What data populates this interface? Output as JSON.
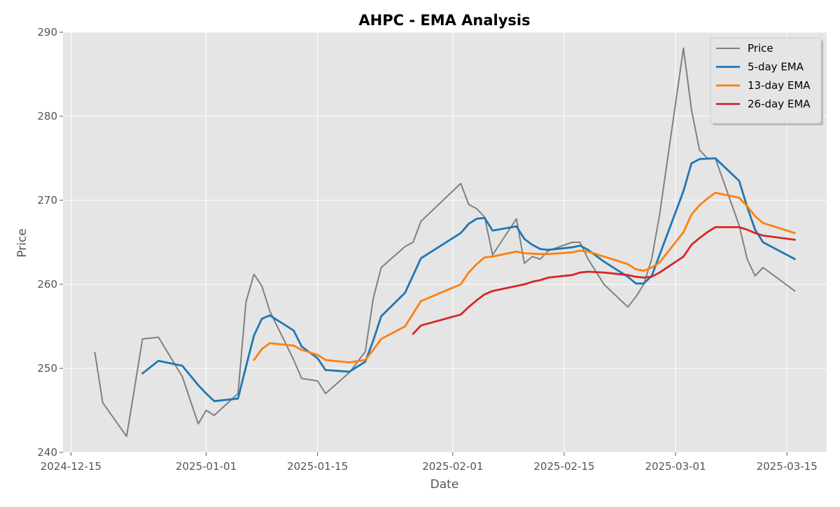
{
  "chart_data": {
    "type": "line",
    "title": "AHPC - EMA Analysis",
    "xlabel": "Date",
    "ylabel": "Price",
    "xlim": [
      "2024-12-14",
      "2025-03-20"
    ],
    "ylim": [
      240,
      290
    ],
    "x_ticks": [
      "2024-12-15",
      "2025-01-01",
      "2025-01-15",
      "2025-02-01",
      "2025-02-15",
      "2025-03-01",
      "2025-03-15"
    ],
    "y_ticks": [
      240,
      250,
      260,
      270,
      280,
      290
    ],
    "grid": true,
    "legend_position": "top-right",
    "series": [
      {
        "name": "Price",
        "color": "#808080",
        "points": [
          [
            "2024-12-18",
            251.9
          ],
          [
            "2024-12-19",
            245.9
          ],
          [
            "2024-12-22",
            241.9
          ],
          [
            "2024-12-24",
            253.5
          ],
          [
            "2024-12-26",
            253.7
          ],
          [
            "2024-12-29",
            249.0
          ],
          [
            "2024-12-31",
            243.4
          ],
          [
            "2025-01-01",
            245.0
          ],
          [
            "2025-01-02",
            244.4
          ],
          [
            "2025-01-05",
            247.0
          ],
          [
            "2025-01-06",
            257.9
          ],
          [
            "2025-01-07",
            261.2
          ],
          [
            "2025-01-08",
            259.8
          ],
          [
            "2025-01-09",
            256.8
          ],
          [
            "2025-01-12",
            251.0
          ],
          [
            "2025-01-13",
            248.8
          ],
          [
            "2025-01-15",
            248.5
          ],
          [
            "2025-01-16",
            247.0
          ],
          [
            "2025-01-19",
            249.5
          ],
          [
            "2025-01-21",
            252.0
          ],
          [
            "2025-01-22",
            258.3
          ],
          [
            "2025-01-23",
            262.0
          ],
          [
            "2025-01-26",
            264.5
          ],
          [
            "2025-01-27",
            265.0
          ],
          [
            "2025-01-28",
            267.5
          ],
          [
            "2025-02-02",
            272.0
          ],
          [
            "2025-02-03",
            269.5
          ],
          [
            "2025-02-04",
            269.0
          ],
          [
            "2025-02-05",
            268.0
          ],
          [
            "2025-02-06",
            263.5
          ],
          [
            "2025-02-09",
            267.8
          ],
          [
            "2025-02-10",
            262.5
          ],
          [
            "2025-02-11",
            263.3
          ],
          [
            "2025-02-12",
            263.0
          ],
          [
            "2025-02-13",
            264.0
          ],
          [
            "2025-02-16",
            265.0
          ],
          [
            "2025-02-17",
            265.0
          ],
          [
            "2025-02-18",
            263.0
          ],
          [
            "2025-02-20",
            260.0
          ],
          [
            "2025-02-23",
            257.3
          ],
          [
            "2025-02-24",
            258.5
          ],
          [
            "2025-02-25",
            260.0
          ],
          [
            "2025-02-26",
            263.0
          ],
          [
            "2025-02-27",
            268.3
          ],
          [
            "2025-03-02",
            288.1
          ],
          [
            "2025-03-03",
            280.8
          ],
          [
            "2025-03-04",
            276.0
          ],
          [
            "2025-03-05",
            275.0
          ],
          [
            "2025-03-06",
            275.0
          ],
          [
            "2025-03-09",
            267.0
          ],
          [
            "2025-03-10",
            263.0
          ],
          [
            "2025-03-11",
            261.0
          ],
          [
            "2025-03-12",
            262.0
          ],
          [
            "2025-03-16",
            259.2
          ]
        ]
      },
      {
        "name": "5-day EMA",
        "color": "#1f77b4",
        "points": [
          [
            "2024-12-24",
            249.4
          ],
          [
            "2024-12-26",
            250.9
          ],
          [
            "2024-12-29",
            250.3
          ],
          [
            "2024-12-31",
            248.0
          ],
          [
            "2025-01-01",
            247.0
          ],
          [
            "2025-01-02",
            246.1
          ],
          [
            "2025-01-05",
            246.4
          ],
          [
            "2025-01-06",
            250.2
          ],
          [
            "2025-01-07",
            253.9
          ],
          [
            "2025-01-08",
            255.9
          ],
          [
            "2025-01-09",
            256.3
          ],
          [
            "2025-01-12",
            254.5
          ],
          [
            "2025-01-13",
            252.6
          ],
          [
            "2025-01-15",
            251.2
          ],
          [
            "2025-01-16",
            249.8
          ],
          [
            "2025-01-19",
            249.6
          ],
          [
            "2025-01-21",
            250.8
          ],
          [
            "2025-01-22",
            253.3
          ],
          [
            "2025-01-23",
            256.2
          ],
          [
            "2025-01-26",
            259.0
          ],
          [
            "2025-01-28",
            263.1
          ],
          [
            "2025-02-02",
            266.1
          ],
          [
            "2025-02-03",
            267.2
          ],
          [
            "2025-02-04",
            267.8
          ],
          [
            "2025-02-05",
            267.9
          ],
          [
            "2025-02-06",
            266.4
          ],
          [
            "2025-02-09",
            266.9
          ],
          [
            "2025-02-10",
            265.4
          ],
          [
            "2025-02-11",
            264.7
          ],
          [
            "2025-02-12",
            264.2
          ],
          [
            "2025-02-13",
            264.1
          ],
          [
            "2025-02-16",
            264.4
          ],
          [
            "2025-02-17",
            264.6
          ],
          [
            "2025-02-18",
            264.1
          ],
          [
            "2025-02-20",
            262.7
          ],
          [
            "2025-02-23",
            260.9
          ],
          [
            "2025-02-24",
            260.1
          ],
          [
            "2025-02-25",
            260.1
          ],
          [
            "2025-02-26",
            261.0
          ],
          [
            "2025-02-27",
            263.5
          ],
          [
            "2025-03-02",
            271.1
          ],
          [
            "2025-03-03",
            274.4
          ],
          [
            "2025-03-04",
            274.9
          ],
          [
            "2025-03-06",
            275.0
          ],
          [
            "2025-03-09",
            272.3
          ],
          [
            "2025-03-10",
            269.2
          ],
          [
            "2025-03-11",
            266.5
          ],
          [
            "2025-03-12",
            265.0
          ],
          [
            "2025-03-16",
            263.0
          ]
        ]
      },
      {
        "name": "13-day EMA",
        "color": "#ff7f0e",
        "points": [
          [
            "2025-01-07",
            251.0
          ],
          [
            "2025-01-08",
            252.3
          ],
          [
            "2025-01-09",
            253.0
          ],
          [
            "2025-01-12",
            252.7
          ],
          [
            "2025-01-13",
            252.2
          ],
          [
            "2025-01-15",
            251.6
          ],
          [
            "2025-01-16",
            251.0
          ],
          [
            "2025-01-19",
            250.7
          ],
          [
            "2025-01-21",
            251.0
          ],
          [
            "2025-01-22",
            252.2
          ],
          [
            "2025-01-23",
            253.5
          ],
          [
            "2025-01-26",
            255.0
          ],
          [
            "2025-01-28",
            258.0
          ],
          [
            "2025-02-02",
            260.0
          ],
          [
            "2025-02-03",
            261.4
          ],
          [
            "2025-02-04",
            262.4
          ],
          [
            "2025-02-05",
            263.2
          ],
          [
            "2025-02-06",
            263.3
          ],
          [
            "2025-02-09",
            263.9
          ],
          [
            "2025-02-10",
            263.7
          ],
          [
            "2025-02-12",
            263.6
          ],
          [
            "2025-02-13",
            263.6
          ],
          [
            "2025-02-16",
            263.8
          ],
          [
            "2025-02-17",
            264.0
          ],
          [
            "2025-02-18",
            263.9
          ],
          [
            "2025-02-20",
            263.3
          ],
          [
            "2025-02-23",
            262.4
          ],
          [
            "2025-02-24",
            261.8
          ],
          [
            "2025-02-25",
            261.6
          ],
          [
            "2025-02-26",
            262.0
          ],
          [
            "2025-02-27",
            262.6
          ],
          [
            "2025-03-02",
            266.2
          ],
          [
            "2025-03-03",
            268.3
          ],
          [
            "2025-03-04",
            269.4
          ],
          [
            "2025-03-05",
            270.2
          ],
          [
            "2025-03-06",
            270.9
          ],
          [
            "2025-03-09",
            270.3
          ],
          [
            "2025-03-10",
            269.3
          ],
          [
            "2025-03-11",
            268.1
          ],
          [
            "2025-03-12",
            267.3
          ],
          [
            "2025-03-16",
            266.1
          ]
        ]
      },
      {
        "name": "26-day EMA",
        "color": "#d62728",
        "points": [
          [
            "2025-01-27",
            254.1
          ],
          [
            "2025-01-28",
            255.1
          ],
          [
            "2025-02-02",
            256.4
          ],
          [
            "2025-02-03",
            257.3
          ],
          [
            "2025-02-04",
            258.1
          ],
          [
            "2025-02-05",
            258.8
          ],
          [
            "2025-02-06",
            259.2
          ],
          [
            "2025-02-09",
            259.8
          ],
          [
            "2025-02-10",
            260.0
          ],
          [
            "2025-02-11",
            260.3
          ],
          [
            "2025-02-12",
            260.5
          ],
          [
            "2025-02-13",
            260.8
          ],
          [
            "2025-02-16",
            261.1
          ],
          [
            "2025-02-17",
            261.4
          ],
          [
            "2025-02-18",
            261.5
          ],
          [
            "2025-02-20",
            261.4
          ],
          [
            "2025-02-23",
            261.1
          ],
          [
            "2025-02-24",
            260.9
          ],
          [
            "2025-02-25",
            260.8
          ],
          [
            "2025-02-26",
            260.9
          ],
          [
            "2025-02-27",
            261.4
          ],
          [
            "2025-03-02",
            263.3
          ],
          [
            "2025-03-03",
            264.7
          ],
          [
            "2025-03-04",
            265.5
          ],
          [
            "2025-03-05",
            266.2
          ],
          [
            "2025-03-06",
            266.8
          ],
          [
            "2025-03-09",
            266.8
          ],
          [
            "2025-03-10",
            266.5
          ],
          [
            "2025-03-11",
            266.1
          ],
          [
            "2025-03-12",
            265.8
          ],
          [
            "2025-03-16",
            265.3
          ]
        ]
      }
    ]
  }
}
